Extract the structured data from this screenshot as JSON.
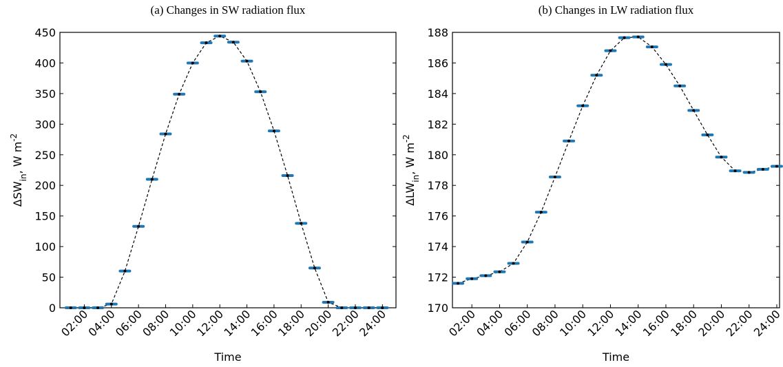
{
  "chart_data": [
    {
      "type": "line",
      "title": "(a) Changes in SW radiation flux",
      "x_label": "Time",
      "y_label": [
        "ΔSW",
        "in",
        ", W m",
        "-2"
      ],
      "x": [
        1,
        2,
        3,
        4,
        5,
        6,
        7,
        8,
        9,
        10,
        11,
        12,
        13,
        14,
        15,
        16,
        17,
        18,
        19,
        20,
        21,
        22,
        23,
        24
      ],
      "series": [
        {
          "color": "#1f77b4",
          "values": [
            0,
            0,
            0,
            6,
            60,
            133,
            210,
            284,
            349,
            400,
            433,
            444,
            434,
            403,
            353,
            289,
            216,
            138,
            65,
            9,
            0,
            0,
            0,
            0
          ]
        }
      ],
      "xlim": [
        0.2,
        25.0
      ],
      "xticks": [
        {
          "value": 2,
          "label": "02:00"
        },
        {
          "value": 4,
          "label": "04:00"
        },
        {
          "value": 6,
          "label": "06:00"
        },
        {
          "value": 8,
          "label": "08:00"
        },
        {
          "value": 10,
          "label": "10:00"
        },
        {
          "value": 12,
          "label": "12:00"
        },
        {
          "value": 14,
          "label": "14:00"
        },
        {
          "value": 16,
          "label": "16:00"
        },
        {
          "value": 18,
          "label": "18:00"
        },
        {
          "value": 20,
          "label": "20:00"
        },
        {
          "value": 22,
          "label": "22:00"
        },
        {
          "value": 24,
          "label": "24:00"
        }
      ],
      "ylim": [
        0,
        450
      ],
      "yticks": [
        0,
        50,
        100,
        150,
        200,
        250,
        300,
        350,
        400,
        450
      ]
    },
    {
      "type": "line",
      "title": "(b) Changes in LW radiation flux",
      "x_label": "Time",
      "y_label": [
        "ΔLW",
        "in",
        ", W m",
        "-2"
      ],
      "x": [
        1,
        2,
        3,
        4,
        5,
        6,
        7,
        8,
        9,
        10,
        11,
        12,
        13,
        14,
        15,
        16,
        17,
        18,
        19,
        20,
        21,
        22,
        23,
        24
      ],
      "series": [
        {
          "color": "#1f77b4",
          "values": [
            171.6,
            171.9,
            172.1,
            172.35,
            172.9,
            174.3,
            176.25,
            178.55,
            180.9,
            183.2,
            185.2,
            186.8,
            187.65,
            187.7,
            187.05,
            185.9,
            184.5,
            182.9,
            181.3,
            179.85,
            178.95,
            178.85,
            179.05,
            179.25
          ]
        }
      ],
      "xlim": [
        0.6,
        24.2
      ],
      "xticks": [
        {
          "value": 2,
          "label": "02:00"
        },
        {
          "value": 4,
          "label": "04:00"
        },
        {
          "value": 6,
          "label": "06:00"
        },
        {
          "value": 8,
          "label": "08:00"
        },
        {
          "value": 10,
          "label": "10:00"
        },
        {
          "value": 12,
          "label": "12:00"
        },
        {
          "value": 14,
          "label": "14:00"
        },
        {
          "value": 16,
          "label": "16:00"
        },
        {
          "value": 18,
          "label": "18:00"
        },
        {
          "value": 20,
          "label": "20:00"
        },
        {
          "value": 22,
          "label": "22:00"
        },
        {
          "value": 24,
          "label": "24:00"
        }
      ],
      "ylim": [
        170,
        188
      ],
      "yticks": [
        170,
        172,
        174,
        176,
        178,
        180,
        182,
        184,
        186,
        188
      ]
    }
  ]
}
